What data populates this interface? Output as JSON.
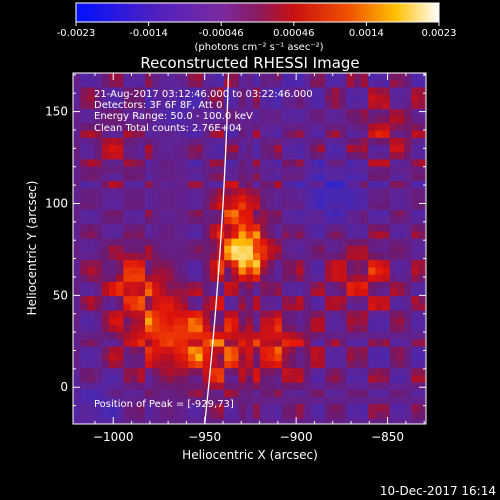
{
  "colorbar": {
    "min_label": "-0.0023",
    "ticks": [
      "-0.0023",
      "-0.0014",
      "-0.00046",
      "0.00046",
      "0.0014",
      "0.0023"
    ],
    "range": [
      -0.0023,
      0.0023
    ],
    "units_label": "(photons cm⁻² s⁻¹ asec⁻²)",
    "colors": {
      "low": "#0000ff",
      "mid": "#a02080",
      "high": "#ffffff"
    }
  },
  "title": "Reconstructed RHESSI Image",
  "info_lines": [
    "21-Aug-2017 03:12:46.000 to 03:22:46.000",
    "Detectors: 3F 6F 8F, Att 0",
    "Energy Range: 50.0 - 100.0 keV",
    "Clean     Total counts: 2.76E+04"
  ],
  "peak_text": "Position of Peak = [-929,73]",
  "footer_date": "10-Dec-2017 16:14",
  "chart_data": {
    "type": "heatmap",
    "title": "Reconstructed RHESSI Image",
    "xlabel": "Heliocentric X (arcsec)",
    "ylabel": "Heliocentric Y (arcsec)",
    "xlim": [
      -1022,
      -829
    ],
    "ylim": [
      -20,
      171
    ],
    "xticks": [
      -1000,
      -950,
      -900,
      -850
    ],
    "yticks": [
      0,
      50,
      100,
      150
    ],
    "xtick_labels": [
      "−1000",
      "−950",
      "−900",
      "−850"
    ],
    "ytick_labels": [
      "0",
      "50",
      "100",
      "150"
    ],
    "peak": {
      "x": -929,
      "y": 73
    },
    "limb_line": [
      [
        -950,
        -20
      ],
      [
        -937,
        171
      ]
    ],
    "colorbar_range": [
      -0.0023,
      0.0023
    ]
  }
}
